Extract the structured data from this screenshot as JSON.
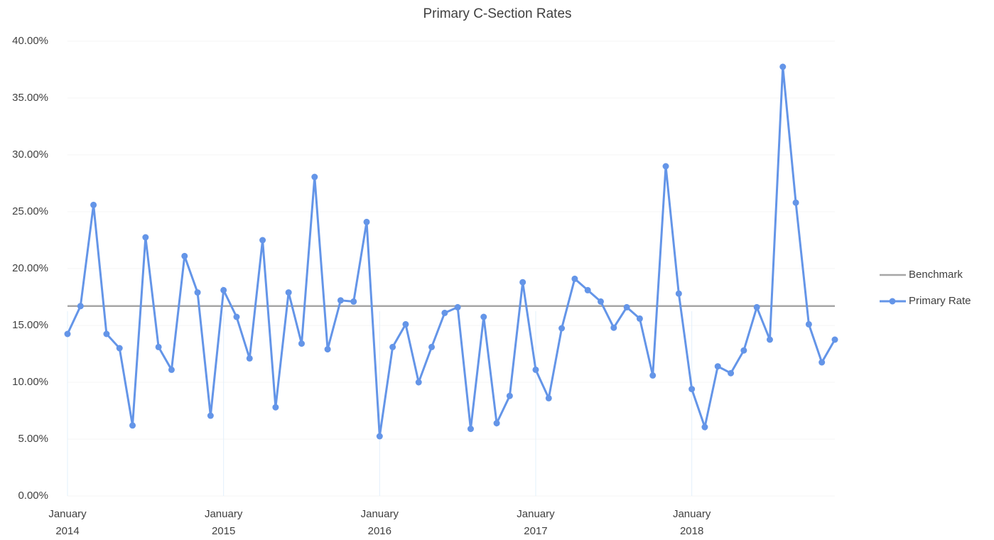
{
  "chart_data": {
    "type": "line",
    "title": "Primary C-Section Rates",
    "categories": [
      "January 2014",
      null,
      null,
      null,
      null,
      null,
      null,
      null,
      null,
      null,
      null,
      null,
      "January 2015",
      null,
      null,
      null,
      null,
      null,
      null,
      null,
      null,
      null,
      null,
      null,
      "January 2016",
      null,
      null,
      null,
      null,
      null,
      null,
      null,
      null,
      null,
      null,
      null,
      "January 2017",
      null,
      null,
      null,
      null,
      null,
      null,
      null,
      null,
      null,
      null,
      null,
      "January 2018",
      null,
      null,
      null,
      null,
      null,
      null,
      null,
      null,
      null,
      null,
      null
    ],
    "series": [
      {
        "name": "Benchmark",
        "color": "#a6a6a6",
        "marker": false,
        "values": [
          16.7,
          16.7,
          16.7,
          16.7,
          16.7,
          16.7,
          16.7,
          16.7,
          16.7,
          16.7,
          16.7,
          16.7,
          16.7,
          16.7,
          16.7,
          16.7,
          16.7,
          16.7,
          16.7,
          16.7,
          16.7,
          16.7,
          16.7,
          16.7,
          16.7,
          16.7,
          16.7,
          16.7,
          16.7,
          16.7,
          16.7,
          16.7,
          16.7,
          16.7,
          16.7,
          16.7,
          16.7,
          16.7,
          16.7,
          16.7,
          16.7,
          16.7,
          16.7,
          16.7,
          16.7,
          16.7,
          16.7,
          16.7,
          16.7,
          16.7,
          16.7,
          16.7,
          16.7,
          16.7,
          16.7,
          16.7,
          16.7,
          16.7,
          16.7,
          16.7
        ]
      },
      {
        "name": "Primary Rate",
        "color": "#6495e8",
        "marker": true,
        "values": [
          14.25,
          16.7,
          25.6,
          14.25,
          13.0,
          6.2,
          22.75,
          13.1,
          11.1,
          21.1,
          17.9,
          7.06,
          18.1,
          15.75,
          12.1,
          22.5,
          7.8,
          17.9,
          13.4,
          28.06,
          12.9,
          17.2,
          17.1,
          24.1,
          5.25,
          13.1,
          15.1,
          10.0,
          13.1,
          16.1,
          16.6,
          5.9,
          15.75,
          6.4,
          8.8,
          18.8,
          11.1,
          8.6,
          14.75,
          19.1,
          18.1,
          17.1,
          14.8,
          16.6,
          15.6,
          10.6,
          29.0,
          17.8,
          9.4,
          6.06,
          11.4,
          10.8,
          12.8,
          16.6,
          13.75,
          37.75,
          25.8,
          15.1,
          11.75,
          13.75
        ]
      }
    ],
    "ylim": [
      0,
      40
    ],
    "yticks": [
      {
        "value": 0,
        "label": "0.00%"
      },
      {
        "value": 5,
        "label": "5.00%"
      },
      {
        "value": 10,
        "label": "10.00%"
      },
      {
        "value": 15,
        "label": "15.00%"
      },
      {
        "value": 20,
        "label": "20.00%"
      },
      {
        "value": 25,
        "label": "25.00%"
      },
      {
        "value": 30,
        "label": "30.00%"
      },
      {
        "value": 35,
        "label": "35.00%"
      },
      {
        "value": 40,
        "label": "40.00%"
      }
    ],
    "legend": "right"
  }
}
